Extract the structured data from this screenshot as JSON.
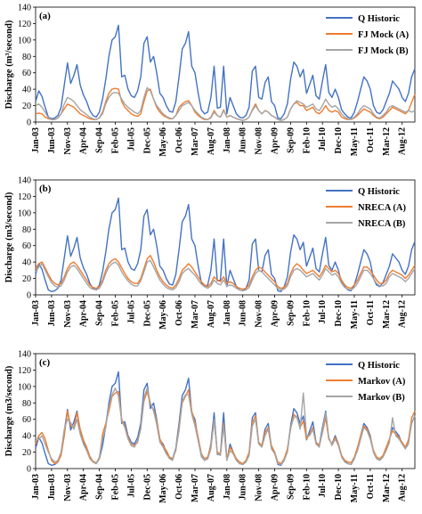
{
  "x_ticks": [
    "Jan-03",
    "Jun-03",
    "Nov-03",
    "Apr-04",
    "Sep-04",
    "Feb-05",
    "Jul-05",
    "Dec-05",
    "May-06",
    "Oct-06",
    "Mar-07",
    "Aug-07",
    "Jan-08",
    "Jun-08",
    "Nov-08",
    "Apr-09",
    "Sep-09",
    "Feb-10",
    "Jul-10",
    "Dec-10",
    "May-11",
    "Oct-11",
    "Mar-12",
    "Aug-12"
  ],
  "colors": {
    "historic": "#4472C4",
    "model_a": "#ED7D31",
    "model_b": "#A5A5A5"
  },
  "chart_data": [
    {
      "type": "line",
      "panel_label": "(a)",
      "ylabel": "Discharge (m³/second)",
      "ylim": [
        0,
        140
      ],
      "yticks": [
        0,
        20,
        40,
        60,
        80,
        100,
        120,
        140
      ],
      "grid": false,
      "legend_position": "top-right",
      "series": [
        {
          "name": "Q Historic",
          "color_key": "historic",
          "values": [
            25,
            38,
            31,
            18,
            6,
            4,
            5,
            8,
            18,
            45,
            72,
            47,
            57,
            70,
            45,
            33,
            25,
            14,
            8,
            6,
            12,
            28,
            52,
            80,
            100,
            104,
            118,
            55,
            57,
            40,
            32,
            30,
            38,
            55,
            96,
            104,
            73,
            80,
            60,
            35,
            30,
            20,
            13,
            12,
            25,
            55,
            89,
            96,
            110,
            68,
            60,
            35,
            15,
            10,
            12,
            30,
            68,
            17,
            18,
            68,
            10,
            30,
            20,
            10,
            6,
            5,
            8,
            18,
            62,
            68,
            30,
            28,
            48,
            55,
            25,
            20,
            5,
            4,
            10,
            22,
            52,
            73,
            68,
            55,
            64,
            35,
            46,
            57,
            32,
            28,
            50,
            70,
            36,
            30,
            40,
            30,
            15,
            10,
            6,
            5,
            12,
            25,
            40,
            55,
            50,
            40,
            20,
            12,
            10,
            15,
            25,
            35,
            50,
            45,
            40,
            30,
            25,
            35,
            55,
            65
          ]
        },
        {
          "name": "FJ Mock (A)",
          "color_key": "model_a",
          "values": [
            10,
            11,
            10,
            6,
            4,
            3,
            3,
            5,
            10,
            16,
            22,
            20,
            18,
            14,
            10,
            8,
            6,
            4,
            3,
            3,
            5,
            12,
            25,
            35,
            40,
            41,
            40,
            25,
            18,
            14,
            10,
            8,
            7,
            10,
            25,
            38,
            40,
            28,
            18,
            12,
            8,
            6,
            4,
            4,
            8,
            18,
            22,
            25,
            26,
            20,
            12,
            8,
            5,
            3,
            3,
            6,
            14,
            8,
            6,
            15,
            6,
            8,
            6,
            4,
            3,
            2,
            3,
            6,
            15,
            22,
            14,
            10,
            14,
            12,
            8,
            6,
            3,
            2,
            3,
            6,
            16,
            22,
            24,
            20,
            20,
            14,
            16,
            18,
            12,
            10,
            14,
            20,
            14,
            12,
            14,
            12,
            6,
            4,
            3,
            3,
            5,
            8,
            12,
            16,
            14,
            12,
            8,
            5,
            4,
            6,
            10,
            14,
            18,
            16,
            14,
            12,
            10,
            14,
            24,
            34
          ]
        },
        {
          "name": "FJ Mock (B)",
          "color_key": "model_b",
          "values": [
            20,
            22,
            18,
            12,
            5,
            3,
            3,
            5,
            10,
            22,
            30,
            28,
            25,
            20,
            15,
            12,
            9,
            6,
            4,
            3,
            5,
            10,
            22,
            30,
            35,
            36,
            35,
            28,
            22,
            18,
            15,
            12,
            10,
            14,
            30,
            42,
            38,
            28,
            20,
            15,
            10,
            7,
            5,
            4,
            8,
            14,
            20,
            22,
            24,
            20,
            14,
            10,
            6,
            4,
            3,
            5,
            12,
            8,
            6,
            14,
            6,
            8,
            6,
            4,
            3,
            2,
            3,
            6,
            14,
            20,
            14,
            10,
            14,
            12,
            8,
            6,
            3,
            2,
            3,
            6,
            16,
            22,
            26,
            24,
            22,
            18,
            20,
            22,
            16,
            14,
            20,
            28,
            22,
            18,
            20,
            16,
            10,
            6,
            4,
            3,
            6,
            10,
            16,
            20,
            18,
            16,
            10,
            6,
            5,
            8,
            12,
            18,
            20,
            18,
            16,
            14,
            12,
            14,
            12,
            14
          ]
        }
      ]
    },
    {
      "type": "line",
      "panel_label": "(b)",
      "ylabel": "Discharge (m3/second)",
      "ylim": [
        0,
        140
      ],
      "yticks": [
        0,
        20,
        40,
        60,
        80,
        100,
        120,
        140
      ],
      "grid": false,
      "legend_position": "top-right",
      "series": [
        {
          "name": "Q Historic",
          "color_key": "historic",
          "values": [
            25,
            38,
            31,
            18,
            6,
            4,
            5,
            8,
            18,
            45,
            72,
            47,
            57,
            70,
            45,
            33,
            25,
            14,
            8,
            6,
            12,
            28,
            52,
            80,
            100,
            104,
            118,
            55,
            57,
            40,
            32,
            30,
            38,
            55,
            96,
            104,
            73,
            80,
            60,
            35,
            30,
            20,
            13,
            12,
            25,
            55,
            89,
            96,
            110,
            68,
            60,
            35,
            15,
            10,
            12,
            30,
            68,
            17,
            18,
            68,
            10,
            30,
            20,
            10,
            6,
            5,
            8,
            18,
            62,
            68,
            30,
            28,
            48,
            55,
            25,
            20,
            5,
            4,
            10,
            22,
            52,
            73,
            68,
            55,
            64,
            35,
            46,
            57,
            32,
            28,
            50,
            70,
            36,
            30,
            40,
            30,
            15,
            10,
            6,
            5,
            12,
            25,
            40,
            55,
            50,
            40,
            20,
            12,
            10,
            15,
            25,
            35,
            50,
            45,
            40,
            30,
            25,
            35,
            55,
            65
          ]
        },
        {
          "name": "NRECA (A)",
          "color_key": "model_a",
          "values": [
            32,
            38,
            40,
            33,
            25,
            18,
            14,
            12,
            14,
            22,
            32,
            38,
            40,
            36,
            30,
            24,
            18,
            12,
            9,
            8,
            10,
            18,
            30,
            38,
            42,
            44,
            40,
            33,
            26,
            20,
            16,
            14,
            14,
            20,
            32,
            44,
            48,
            40,
            30,
            22,
            16,
            12,
            9,
            8,
            12,
            20,
            30,
            34,
            38,
            34,
            28,
            22,
            16,
            12,
            10,
            14,
            22,
            18,
            16,
            22,
            14,
            16,
            14,
            10,
            8,
            7,
            8,
            12,
            22,
            30,
            34,
            32,
            28,
            24,
            20,
            16,
            10,
            8,
            9,
            14,
            26,
            34,
            38,
            35,
            30,
            26,
            28,
            30,
            26,
            22,
            28,
            36,
            32,
            28,
            30,
            26,
            18,
            12,
            9,
            8,
            12,
            18,
            26,
            34,
            34,
            30,
            24,
            18,
            14,
            14,
            18,
            26,
            30,
            28,
            26,
            24,
            20,
            24,
            30,
            36
          ]
        },
        {
          "name": "NRECA (B)",
          "color_key": "model_b",
          "values": [
            28,
            34,
            38,
            30,
            22,
            15,
            11,
            9,
            11,
            18,
            28,
            34,
            36,
            32,
            26,
            20,
            14,
            9,
            7,
            6,
            8,
            15,
            26,
            34,
            38,
            40,
            36,
            28,
            22,
            17,
            13,
            11,
            11,
            17,
            28,
            40,
            42,
            34,
            26,
            18,
            13,
            9,
            7,
            6,
            9,
            16,
            26,
            30,
            32,
            28,
            24,
            18,
            13,
            10,
            8,
            11,
            18,
            14,
            12,
            18,
            11,
            12,
            11,
            8,
            6,
            5,
            6,
            9,
            18,
            26,
            30,
            28,
            24,
            20,
            16,
            12,
            8,
            6,
            7,
            11,
            22,
            30,
            32,
            30,
            26,
            22,
            24,
            26,
            22,
            18,
            24,
            32,
            28,
            24,
            26,
            22,
            14,
            9,
            7,
            6,
            9,
            14,
            22,
            30,
            30,
            26,
            20,
            14,
            11,
            11,
            14,
            22,
            26,
            24,
            22,
            20,
            16,
            20,
            26,
            32
          ]
        }
      ]
    },
    {
      "type": "line",
      "panel_label": "(c)",
      "ylabel": "Discharge (m3/second)",
      "ylim": [
        0,
        140
      ],
      "yticks": [
        0,
        20,
        40,
        60,
        80,
        100,
        120,
        140
      ],
      "grid": false,
      "legend_position": "top-right",
      "series": [
        {
          "name": "Q Historic",
          "color_key": "historic",
          "values": [
            25,
            38,
            31,
            18,
            6,
            4,
            5,
            8,
            18,
            45,
            72,
            47,
            57,
            70,
            45,
            33,
            25,
            14,
            8,
            6,
            12,
            28,
            52,
            80,
            100,
            104,
            118,
            55,
            57,
            40,
            32,
            30,
            38,
            55,
            96,
            104,
            73,
            80,
            60,
            35,
            30,
            20,
            13,
            12,
            25,
            55,
            89,
            96,
            110,
            68,
            60,
            35,
            15,
            10,
            12,
            30,
            68,
            17,
            18,
            68,
            10,
            30,
            20,
            10,
            6,
            5,
            8,
            18,
            62,
            68,
            30,
            28,
            48,
            55,
            25,
            20,
            5,
            4,
            10,
            22,
            52,
            73,
            68,
            55,
            64,
            35,
            46,
            57,
            32,
            28,
            50,
            70,
            36,
            30,
            40,
            30,
            15,
            10,
            6,
            5,
            12,
            25,
            40,
            55,
            50,
            40,
            20,
            12,
            10,
            15,
            25,
            35,
            50,
            45,
            40,
            30,
            25,
            35,
            55,
            65
          ]
        },
        {
          "name": "Markov (A)",
          "color_key": "model_a",
          "values": [
            30,
            40,
            44,
            36,
            22,
            10,
            6,
            8,
            16,
            40,
            70,
            52,
            50,
            68,
            48,
            35,
            26,
            15,
            9,
            7,
            12,
            42,
            55,
            70,
            88,
            92,
            94,
            60,
            52,
            38,
            30,
            28,
            32,
            50,
            82,
            94,
            78,
            72,
            58,
            36,
            28,
            22,
            14,
            12,
            22,
            50,
            80,
            88,
            96,
            70,
            56,
            38,
            18,
            12,
            14,
            28,
            58,
            20,
            18,
            55,
            12,
            26,
            20,
            12,
            8,
            6,
            10,
            20,
            56,
            64,
            32,
            28,
            44,
            50,
            28,
            20,
            8,
            6,
            12,
            24,
            48,
            66,
            62,
            50,
            58,
            36,
            42,
            50,
            32,
            28,
            44,
            62,
            36,
            30,
            38,
            30,
            16,
            10,
            8,
            7,
            14,
            26,
            40,
            52,
            48,
            38,
            22,
            14,
            12,
            16,
            26,
            36,
            46,
            42,
            38,
            32,
            26,
            34,
            62,
            70
          ]
        },
        {
          "name": "Markov (B)",
          "color_key": "model_b",
          "values": [
            34,
            36,
            40,
            30,
            20,
            12,
            8,
            10,
            20,
            48,
            60,
            56,
            48,
            60,
            42,
            30,
            22,
            12,
            8,
            6,
            14,
            36,
            50,
            76,
            90,
            98,
            88,
            58,
            50,
            36,
            28,
            26,
            34,
            48,
            86,
            98,
            80,
            70,
            54,
            32,
            26,
            18,
            12,
            10,
            24,
            46,
            82,
            90,
            90,
            66,
            52,
            34,
            16,
            10,
            12,
            24,
            60,
            18,
            16,
            52,
            10,
            22,
            18,
            10,
            6,
            5,
            8,
            16,
            52,
            60,
            30,
            26,
            40,
            48,
            24,
            18,
            6,
            5,
            10,
            20,
            50,
            62,
            64,
            48,
            92,
            40,
            40,
            48,
            30,
            26,
            46,
            68,
            38,
            28,
            36,
            28,
            14,
            8,
            6,
            5,
            12,
            22,
            36,
            50,
            46,
            36,
            20,
            12,
            10,
            14,
            22,
            32,
            62,
            40,
            36,
            30,
            24,
            30,
            56,
            64
          ]
        }
      ]
    }
  ]
}
